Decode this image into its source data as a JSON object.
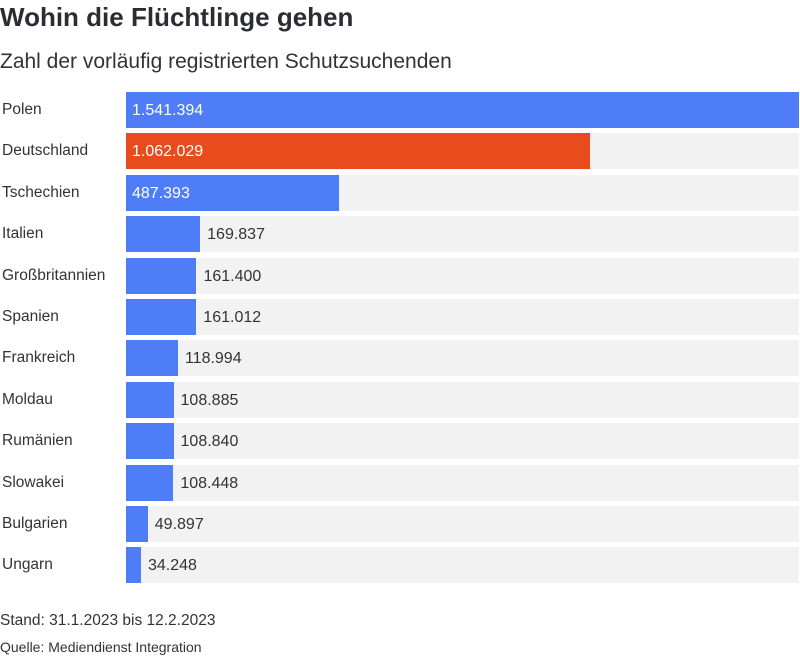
{
  "header": {
    "title": "Wohin die Flüchtlinge gehen",
    "subtitle": "Zahl der vorläufig registrierten Schutzsuchenden"
  },
  "colors": {
    "default_bar": "#4f7cf7",
    "highlight_bar": "#e84c1d",
    "track": "#f2f2f2"
  },
  "chart_data": {
    "type": "bar",
    "orientation": "horizontal",
    "categories": [
      "Polen",
      "Deutschland",
      "Tschechien",
      "Italien",
      "Großbritannien",
      "Spanien",
      "Frankreich",
      "Moldau",
      "Rumänien",
      "Slowakei",
      "Bulgarien",
      "Ungarn"
    ],
    "values": [
      1541394,
      1062029,
      487393,
      169837,
      161400,
      161012,
      118994,
      108885,
      108840,
      108448,
      49897,
      34248
    ],
    "labels": [
      "1.541.394",
      "1.062.029",
      "487.393",
      "169.837",
      "161.400",
      "161.012",
      "118.994",
      "108.885",
      "108.840",
      "108.448",
      "49.897",
      "34.248"
    ],
    "highlight": "Deutschland",
    "xlim": [
      0,
      1541394
    ],
    "title": "Wohin die Flüchtlinge gehen",
    "subtitle": "Zahl der vorläufig registrierten Schutzsuchenden",
    "grid": false
  },
  "footer": {
    "stand": "Stand: 31.1.2023 bis 12.2.2023",
    "source": "Quelle: Mediendienst Integration"
  }
}
